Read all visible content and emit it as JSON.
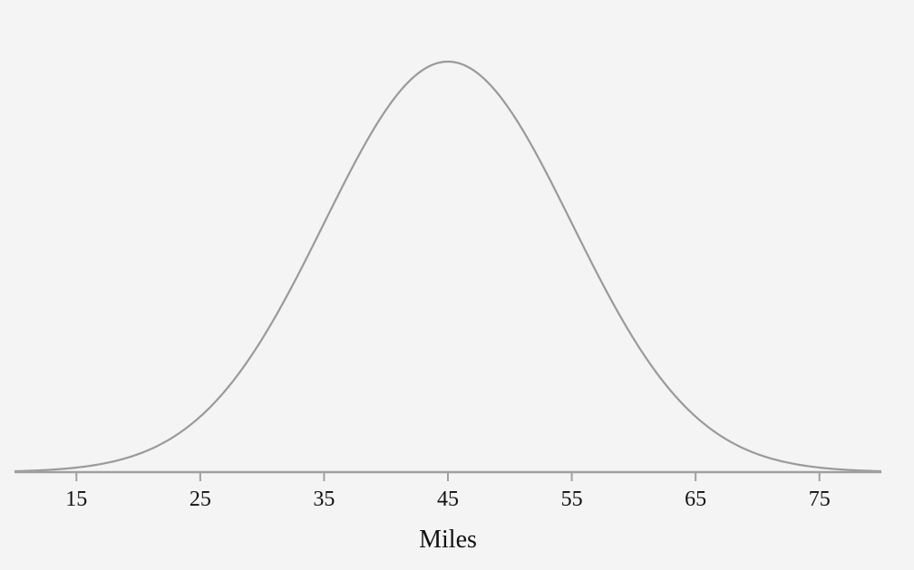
{
  "chart_data": {
    "type": "line",
    "title": "",
    "xlabel": "Miles",
    "ylabel": "",
    "distribution": "normal",
    "mean": 45,
    "std_dev": 10,
    "xlim": [
      10,
      80
    ],
    "x_ticks": [
      15,
      25,
      35,
      45,
      55,
      65,
      75
    ],
    "tick_labels": [
      "15",
      "25",
      "35",
      "45",
      "55",
      "65",
      "75"
    ],
    "grid": false,
    "legend": "none",
    "colors": {
      "background": "#f4f4f4",
      "curve": "#9a9a9a",
      "axis": "#a0a0a0",
      "text": "#111111"
    }
  }
}
